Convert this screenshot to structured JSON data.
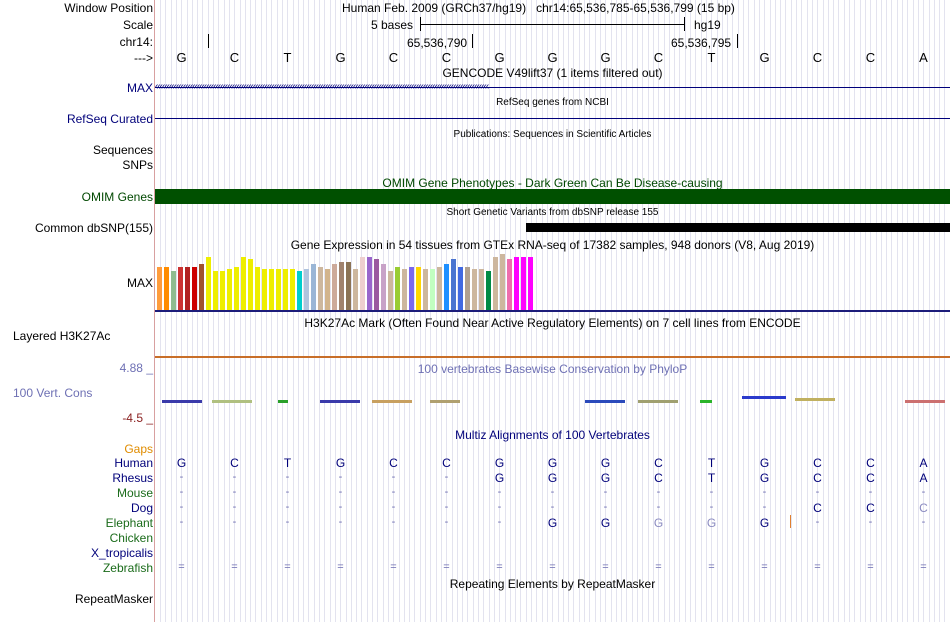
{
  "header": {
    "window_position_label": "Window Position",
    "window_position_value": "Human Feb. 2009 (GRCh37/hg19)   chr14:65,536,785-65,536,799 (15 bp)",
    "scale_label": "Scale",
    "scale_value": "5 bases",
    "scale_assembly": "hg19",
    "chrom_label": "chr14:",
    "coord_1": "65,536,790",
    "coord_2": "65,536,795",
    "strand_label": "--->"
  },
  "bases": [
    "G",
    "C",
    "T",
    "G",
    "C",
    "C",
    "G",
    "G",
    "G",
    "C",
    "T",
    "G",
    "C",
    "C",
    "A"
  ],
  "tracks": {
    "gencode": {
      "title": "GENCODE V49lift37 (1 items filtered out)",
      "label": "MAX"
    },
    "refseq": {
      "title": "RefSeq genes from NCBI",
      "label": "RefSeq Curated"
    },
    "publications": {
      "title": "Publications: Sequences in Scientific Articles",
      "label1": "Sequences",
      "label2": "SNPs"
    },
    "omim": {
      "title": "OMIM Gene Phenotypes - Dark Green Can Be Disease-causing",
      "label": "OMIM Genes",
      "color": "#005000"
    },
    "dbsnp": {
      "title": "Short Genetic Variants from dbSNP release 155",
      "label": "Common dbSNP(155)"
    },
    "gtex": {
      "title": "Gene Expression in 54 tissues from GTEx RNA-seq of 17382 samples, 948 donors (V8, Aug 2019)",
      "label": "MAX"
    },
    "h3k27ac": {
      "title": "H3K27Ac Mark (Often Found Near Active Regulatory Elements) on 7 cell lines from ENCODE",
      "label": "Layered H3K27Ac"
    },
    "phylop": {
      "title": "100 vertebrates Basewise Conservation by PhyloP",
      "label": "100 Vert. Cons",
      "max": "4.88 _",
      "min": "-4.5 _"
    },
    "multiz": {
      "title": "Multiz Alignments of 100 Vertebrates",
      "gaps_label": "Gaps"
    },
    "repeatmasker": {
      "title": "Repeating Elements by RepeatMasker",
      "label": "RepeatMasker"
    }
  },
  "gtex_levels": [
    0.75,
    0.75,
    0.67,
    0.75,
    0.75,
    0.75,
    0.79,
    0.92,
    0.67,
    0.67,
    0.71,
    0.75,
    0.92,
    0.88,
    0.75,
    0.71,
    0.71,
    0.71,
    0.71,
    0.71,
    0.67,
    0.71,
    0.79,
    0.75,
    0.71,
    0.79,
    0.83,
    0.83,
    0.71,
    0.92,
    0.92,
    0.88,
    0.79,
    0.67,
    0.75,
    0.71,
    0.75,
    0.75,
    0.71,
    0.71,
    0.75,
    0.79,
    0.88,
    0.75,
    0.75,
    0.71,
    0.71,
    0.67,
    0.92,
    0.96,
    0.88,
    0.92,
    0.92,
    0.92
  ],
  "gtex_colors": [
    "#ff9c3c",
    "#ff8c00",
    "#8fbc8f",
    "#c33",
    "#b22222",
    "#cc0000",
    "#a0522d",
    "#eeee00",
    "#eeee00",
    "#eeee00",
    "#eeee00",
    "#eeee00",
    "#eeee00",
    "#eeee00",
    "#eeee00",
    "#eeee00",
    "#eeee00",
    "#eeee00",
    "#eeee00",
    "#eeee00",
    "#00cdcd",
    "#b0c4de",
    "#9ab6d6",
    "#cdb79e",
    "#d2b48c",
    "#cdaa9a",
    "#a0826d",
    "#8b7355",
    "#cdb79e",
    "#eecfcf",
    "#9966cc",
    "#9a5aa0",
    "#c8a2c8",
    "#cdb79e",
    "#99cc33",
    "#cdb79e",
    "#7a67ee",
    "#ffd700",
    "#cdb79e",
    "#c1ffc1",
    "#cdb79e",
    "#1e90ff",
    "#4a74d0",
    "#4169e1",
    "#b0a090",
    "#cdb79e",
    "#cdb79e",
    "#008b45",
    "#cdb79e",
    "#cdb79e",
    "#ee6ead",
    "#ff00ff",
    "#ff00ff",
    "#ff00ff"
  ],
  "species": [
    {
      "name": "Human",
      "color": "#00007a",
      "bases": [
        "G",
        "C",
        "T",
        "G",
        "C",
        "C",
        "G",
        "G",
        "G",
        "C",
        "T",
        "G",
        "C",
        "C",
        "A"
      ]
    },
    {
      "name": "Rhesus",
      "color": "#00007a",
      "bases": [
        "-",
        "-",
        "-",
        "-",
        "-",
        "-",
        "G",
        "G",
        "G",
        "C",
        "T",
        "G",
        "C",
        "C",
        "A"
      ]
    },
    {
      "name": "Mouse",
      "color": "#1a6b1a",
      "bases": [
        "-",
        "-",
        "-",
        "-",
        "-",
        "-",
        "-",
        "-",
        "-",
        "-",
        "-",
        "-",
        "-",
        "-",
        "-"
      ]
    },
    {
      "name": "Dog",
      "color": "#00007a",
      "bases": [
        "-",
        "-",
        "-",
        "-",
        "-",
        "-",
        "-",
        "-",
        "-",
        "-",
        "-",
        "-",
        "C",
        "C",
        "C"
      ]
    },
    {
      "name": "Elephant",
      "color": "#1a6b1a",
      "bases": [
        "-",
        "-",
        "-",
        "-",
        "-",
        "-",
        "-",
        "G",
        "G",
        "G",
        "G",
        "G",
        "-",
        "-",
        "-"
      ]
    },
    {
      "name": "Chicken",
      "color": "#1a6b1a",
      "bases": [
        "",
        "",
        "",
        "",
        "",
        "",
        "",
        "",
        "",
        "",
        "",
        "",
        "",
        "",
        ""
      ]
    },
    {
      "name": "X_tropicalis",
      "color": "#00007a",
      "bases": [
        "",
        "",
        "",
        "",
        "",
        "",
        "",
        "",
        "",
        "",
        "",
        "",
        "",
        "",
        ""
      ]
    },
    {
      "name": "Zebrafish",
      "color": "#1a6b1a",
      "bases": [
        "=",
        "=",
        "=",
        "=",
        "=",
        "=",
        "=",
        "=",
        "=",
        "=",
        "=",
        "=",
        "=",
        "=",
        "="
      ]
    }
  ]
}
